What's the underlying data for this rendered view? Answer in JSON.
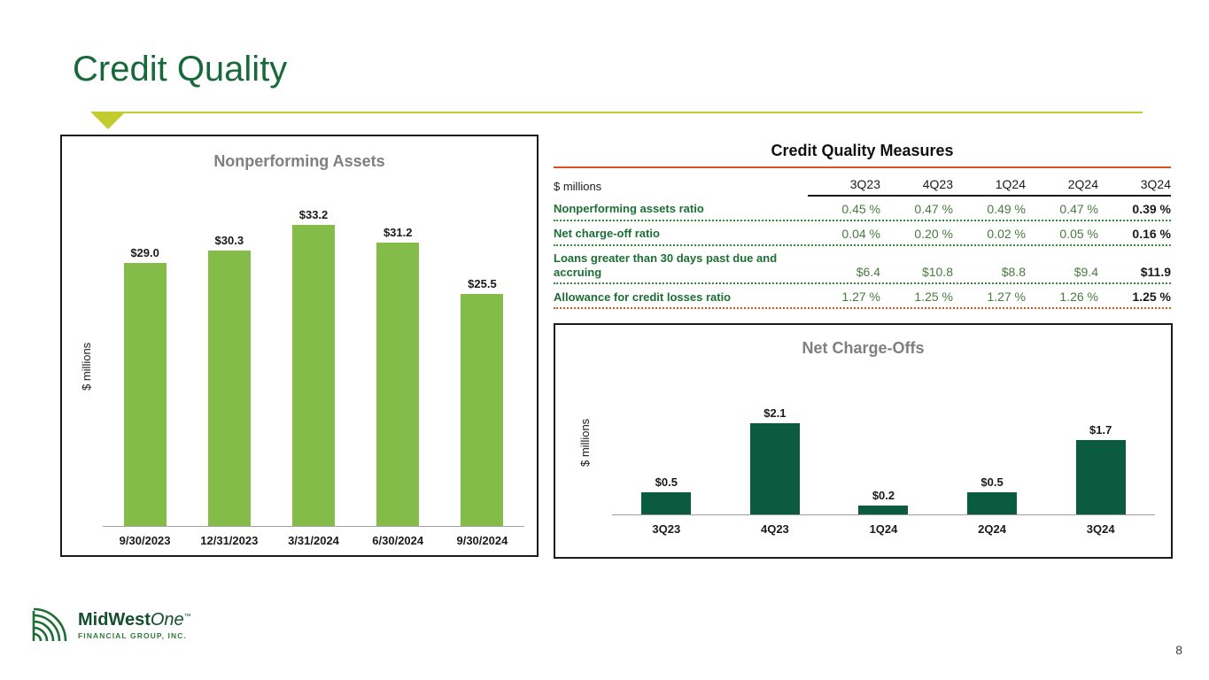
{
  "slide": {
    "title": "Credit Quality",
    "page_number": "8",
    "logo": {
      "brand_bold": "MidWest",
      "brand_italic": "One",
      "tm": "™",
      "subtitle": "FINANCIAL GROUP, INC."
    }
  },
  "colors": {
    "title_green": "#17693a",
    "accent_lime": "#c2cc2d",
    "table_rule_orange": "#d8541d",
    "bar_light_green": "#84bc49",
    "bar_dark_green": "#0b5b40",
    "chart_title_gray": "#7f7f7f"
  },
  "chart_data": [
    {
      "type": "bar",
      "title": "Nonperforming Assets",
      "ylabel": "$ millions",
      "categories": [
        "9/30/2023",
        "12/31/2023",
        "3/31/2024",
        "6/30/2024",
        "9/30/2024"
      ],
      "values": [
        29.0,
        30.3,
        33.2,
        31.2,
        25.5
      ],
      "data_labels": [
        "$29.0",
        "$30.3",
        "$33.2",
        "$31.2",
        "$25.5"
      ],
      "bar_color": "#84bc49",
      "ylim": [
        0,
        35
      ],
      "grid": false,
      "legend": false
    },
    {
      "type": "bar",
      "title": "Net Charge-Offs",
      "ylabel": "$ millions",
      "categories": [
        "3Q23",
        "4Q23",
        "1Q24",
        "2Q24",
        "3Q24"
      ],
      "values": [
        0.5,
        2.1,
        0.2,
        0.5,
        1.7
      ],
      "data_labels": [
        "$0.5",
        "$2.1",
        "$0.2",
        "$0.5",
        "$1.7"
      ],
      "bar_color": "#0b5b40",
      "ylim": [
        0,
        2.5
      ],
      "grid": false,
      "legend": false
    },
    {
      "type": "table",
      "title": "Credit Quality Measures",
      "unit_label": "$ millions",
      "columns": [
        "3Q23",
        "4Q23",
        "1Q24",
        "2Q24",
        "3Q24"
      ],
      "rows": [
        {
          "label": "Nonperforming assets ratio",
          "values": [
            "0.45 %",
            "0.47 %",
            "0.49 %",
            "0.47 %",
            "0.39 %"
          ]
        },
        {
          "label": "Net charge-off ratio",
          "values": [
            "0.04 %",
            "0.20 %",
            "0.02 %",
            "0.05 %",
            "0.16 %"
          ]
        },
        {
          "label": "Loans greater than 30 days past due and accruing",
          "values": [
            "$6.4",
            "$10.8",
            "$8.8",
            "$9.4",
            "$11.9"
          ]
        },
        {
          "label": "Allowance for credit losses ratio",
          "values": [
            "1.27 %",
            "1.25 %",
            "1.27 %",
            "1.26 %",
            "1.25 %"
          ]
        }
      ]
    }
  ]
}
